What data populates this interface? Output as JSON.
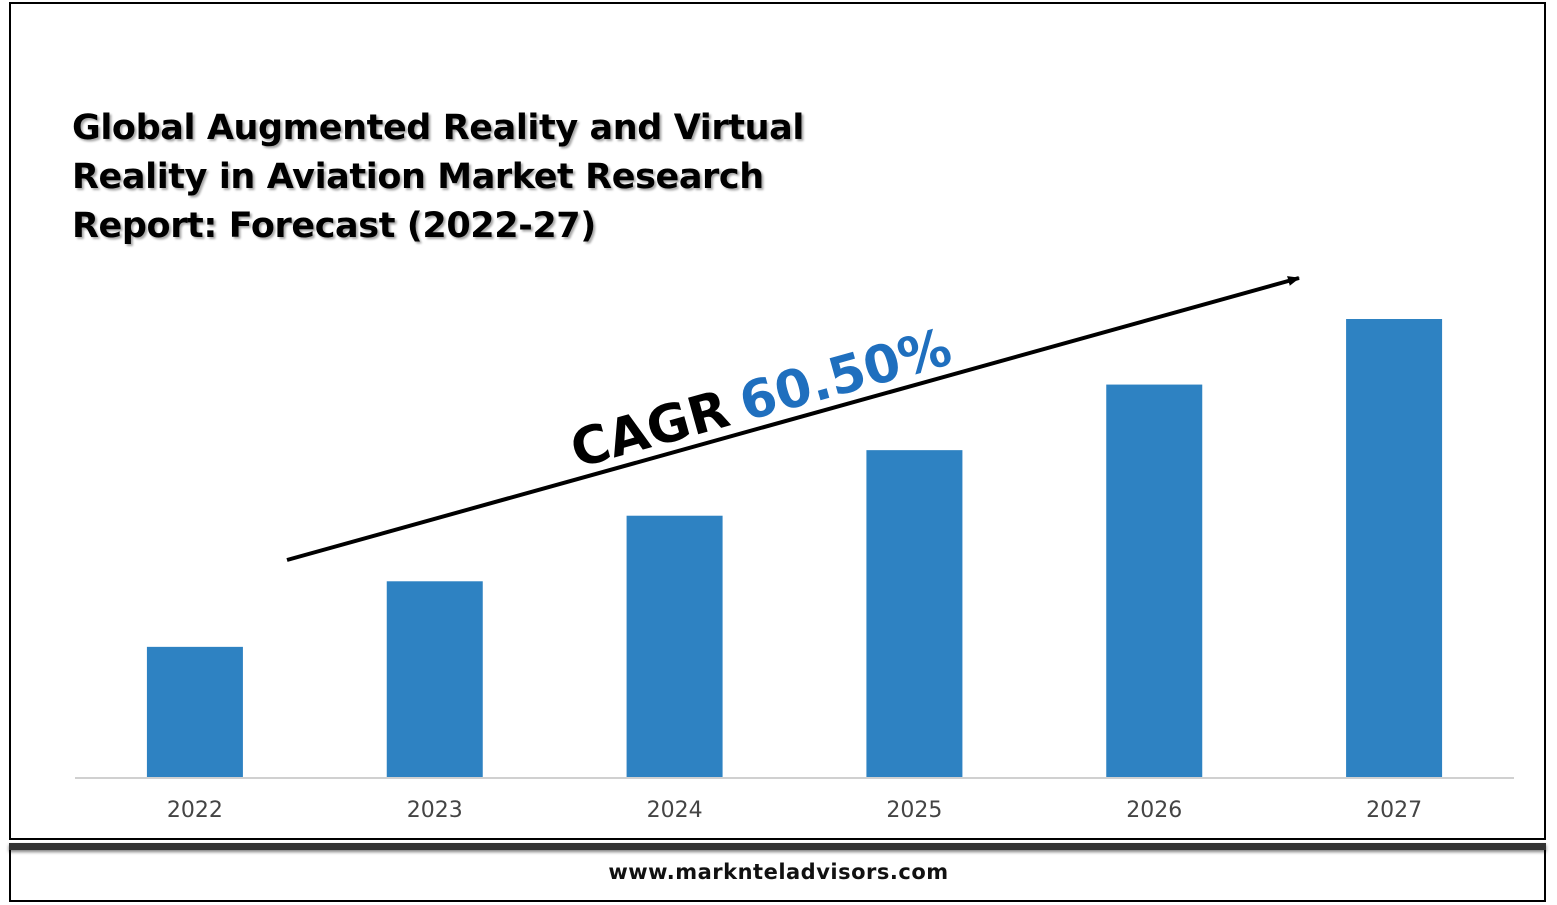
{
  "title": "Global Augmented Reality and Virtual Reality in Aviation Market Research Report: Forecast (2022-27)",
  "footer": {
    "url": "www.marknteladvisors.com"
  },
  "colors": {
    "bar": "#2e82c2",
    "cagr_value": "#1f6fbe",
    "text": "#000000",
    "tick": "#444444"
  },
  "annotation": {
    "cagr_label": "CAGR",
    "cagr_value": "60.50%"
  },
  "chart_data": {
    "type": "bar",
    "title": "Global Augmented Reality and Virtual Reality in Aviation Market Research Report: Forecast (2022-27)",
    "categories": [
      "2022",
      "2023",
      "2024",
      "2025",
      "2026",
      "2027"
    ],
    "values": [
      1.0,
      1.5,
      2.0,
      2.5,
      3.0,
      3.5
    ],
    "ylim": [
      0,
      3.5
    ],
    "xlabel": "",
    "ylabel": "",
    "grid": false,
    "legend": "none",
    "annotations": [
      "CAGR 60.50%"
    ]
  }
}
